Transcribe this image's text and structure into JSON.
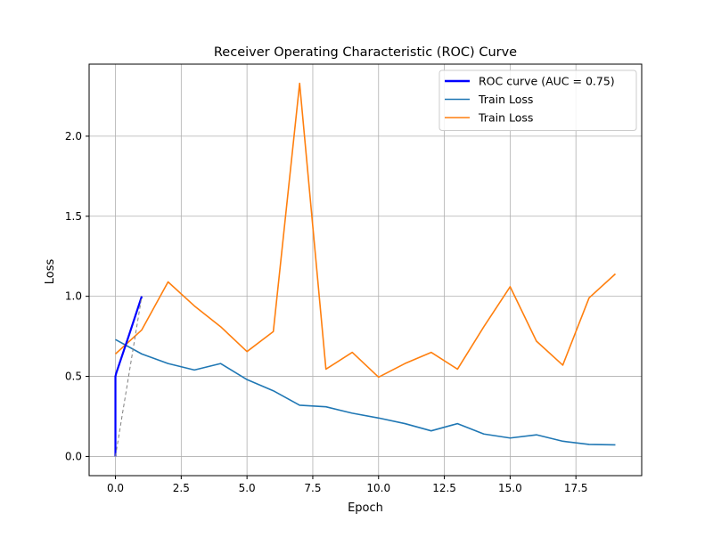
{
  "chart_data": {
    "type": "line",
    "title": "Receiver Operating Characteristic (ROC) Curve",
    "xlabel": "Epoch",
    "ylabel": "Loss",
    "xlim": [
      -1,
      20
    ],
    "ylim": [
      -0.12,
      2.45
    ],
    "xticks": [
      0.0,
      2.5,
      5.0,
      7.5,
      10.0,
      12.5,
      15.0,
      17.5
    ],
    "xtick_labels": [
      "0.0",
      "2.5",
      "5.0",
      "7.5",
      "10.0",
      "12.5",
      "15.0",
      "17.5"
    ],
    "yticks": [
      0.0,
      0.5,
      1.0,
      1.5,
      2.0
    ],
    "ytick_labels": [
      "0.0",
      "0.5",
      "1.0",
      "1.5",
      "2.0"
    ],
    "grid": true,
    "legend_position": "top-right",
    "series": [
      {
        "name": "ROC curve (AUC = 0.75)",
        "color": "#0000ff",
        "style": "solid-thick",
        "x": [
          0.0,
          0.0,
          0.03,
          0.5,
          1.0
        ],
        "y": [
          0.0,
          0.5,
          0.52,
          0.75,
          1.0
        ]
      },
      {
        "name": "Train Loss",
        "color": "#1f77b4",
        "style": "solid",
        "x": [
          0,
          1,
          2,
          3,
          4,
          5,
          6,
          7,
          8,
          9,
          10,
          11,
          12,
          13,
          14,
          15,
          16,
          17,
          18,
          19
        ],
        "y": [
          0.73,
          0.64,
          0.58,
          0.54,
          0.58,
          0.48,
          0.41,
          0.32,
          0.31,
          0.27,
          0.24,
          0.205,
          0.16,
          0.205,
          0.14,
          0.115,
          0.135,
          0.095,
          0.075,
          0.072
        ]
      },
      {
        "name": "Train Loss",
        "color": "#ff7f0e",
        "style": "solid",
        "x": [
          0,
          1,
          2,
          3,
          4,
          5,
          6,
          7,
          8,
          9,
          10,
          11,
          12,
          13,
          14,
          15,
          16,
          17,
          18,
          19
        ],
        "y": [
          0.64,
          0.79,
          1.09,
          0.94,
          0.81,
          0.655,
          0.78,
          2.33,
          0.545,
          0.65,
          0.495,
          0.58,
          0.65,
          0.545,
          0.81,
          1.06,
          0.72,
          0.57,
          0.99,
          1.14
        ]
      },
      {
        "name": "",
        "color": "#808080",
        "style": "dashed",
        "x": [
          0,
          1
        ],
        "y": [
          0,
          1
        ]
      }
    ]
  }
}
